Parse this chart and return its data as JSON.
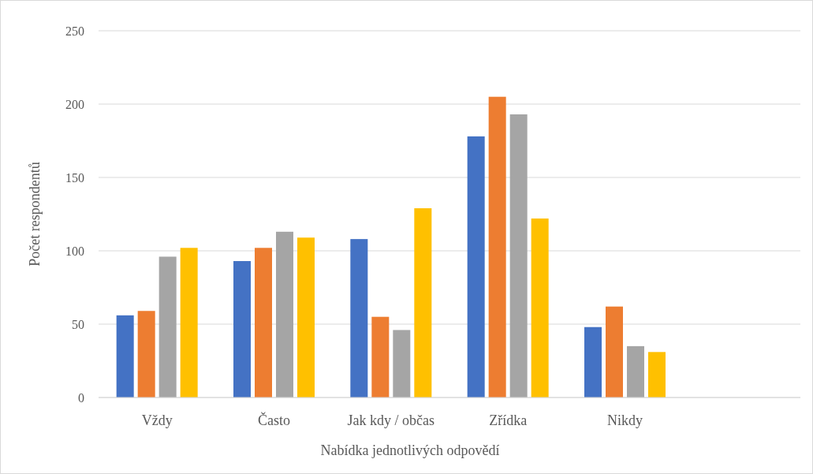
{
  "chart_data": {
    "type": "bar",
    "xlabel": "Nabídka jednotlivých odpovědí",
    "ylabel": "Počet respondentů",
    "categories": [
      "Vždy",
      "Často",
      "Jak kdy / občas",
      "Zřídka",
      "Nikdy",
      null
    ],
    "series": [
      {
        "color": "#4472c4",
        "values": [
          56,
          93,
          108,
          178,
          48,
          null
        ]
      },
      {
        "color": "#ed7d31",
        "values": [
          59,
          102,
          55,
          205,
          62,
          null
        ]
      },
      {
        "color": "#a5a5a5",
        "values": [
          96,
          113,
          46,
          193,
          35,
          null
        ]
      },
      {
        "color": "#ffc000",
        "values": [
          102,
          109,
          129,
          122,
          31,
          null
        ]
      }
    ],
    "ylim": [
      0,
      250
    ],
    "yticks": [
      0,
      50,
      100,
      150,
      200,
      250
    ],
    "grid": "y"
  }
}
